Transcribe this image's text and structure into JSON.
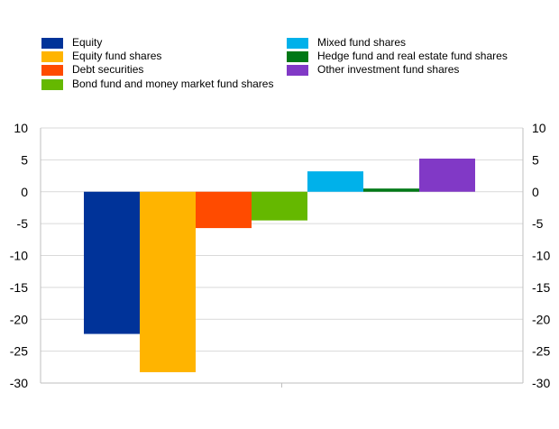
{
  "chart_data": {
    "type": "bar",
    "title": "",
    "xlabel": "",
    "ylabel": "",
    "ylim": [
      -30,
      10
    ],
    "yticks": [
      10,
      5,
      0,
      -5,
      -10,
      -15,
      -20,
      -25,
      -30
    ],
    "grid": true,
    "legend_position": "top",
    "series": [
      {
        "name": "Equity",
        "value": -22.3,
        "color": "#003399"
      },
      {
        "name": "Equity fund shares",
        "value": -28.3,
        "color": "#ffb400"
      },
      {
        "name": "Debt securities",
        "value": -5.7,
        "color": "#ff4b00"
      },
      {
        "name": "Bond fund and money market fund shares",
        "value": -4.5,
        "color": "#65b800"
      },
      {
        "name": "Mixed fund shares",
        "value": 3.2,
        "color": "#00b1ea"
      },
      {
        "name": "Hedge fund and real estate fund shares",
        "value": 0.5,
        "color": "#007816"
      },
      {
        "name": "Other investment fund shares",
        "value": 5.2,
        "color": "#8139c6"
      }
    ]
  }
}
